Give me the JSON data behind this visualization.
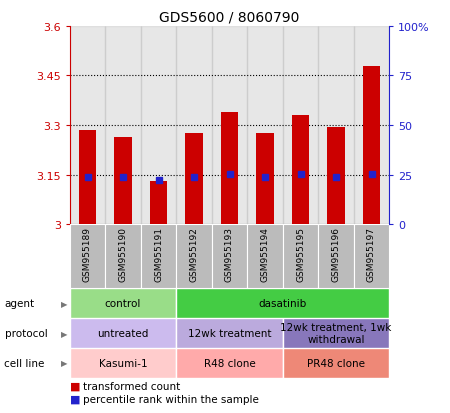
{
  "title": "GDS5600 / 8060790",
  "samples": [
    "GSM955189",
    "GSM955190",
    "GSM955191",
    "GSM955192",
    "GSM955193",
    "GSM955194",
    "GSM955195",
    "GSM955196",
    "GSM955197"
  ],
  "transformed_counts": [
    3.285,
    3.265,
    3.13,
    3.275,
    3.34,
    3.275,
    3.33,
    3.295,
    3.48
  ],
  "percentile_ranks_y": [
    3.142,
    3.142,
    3.133,
    3.142,
    3.152,
    3.142,
    3.152,
    3.142,
    3.152
  ],
  "ylim": [
    3.0,
    3.6
  ],
  "yticks": [
    3.0,
    3.15,
    3.3,
    3.45,
    3.6
  ],
  "ytick_labels": [
    "3",
    "3.15",
    "3.3",
    "3.45",
    "3.6"
  ],
  "right_ytick_labels": [
    "0",
    "25",
    "50",
    "75",
    "100%"
  ],
  "bar_color": "#cc0000",
  "percentile_color": "#2222cc",
  "left_axis_color": "#cc0000",
  "right_axis_color": "#2222cc",
  "sample_bg_color": "#bbbbbb",
  "agent_row": {
    "label": "agent",
    "groups": [
      {
        "text": "control",
        "start": 0,
        "end": 3,
        "color": "#99dd88"
      },
      {
        "text": "dasatinib",
        "start": 3,
        "end": 9,
        "color": "#44cc44"
      }
    ]
  },
  "protocol_row": {
    "label": "protocol",
    "groups": [
      {
        "text": "untreated",
        "start": 0,
        "end": 3,
        "color": "#ccbbee"
      },
      {
        "text": "12wk treatment",
        "start": 3,
        "end": 6,
        "color": "#bbaadd"
      },
      {
        "text": "12wk treatment, 1wk\nwithdrawal",
        "start": 6,
        "end": 9,
        "color": "#8877bb"
      }
    ]
  },
  "cellline_row": {
    "label": "cell line",
    "groups": [
      {
        "text": "Kasumi-1",
        "start": 0,
        "end": 3,
        "color": "#ffcccc"
      },
      {
        "text": "R48 clone",
        "start": 3,
        "end": 6,
        "color": "#ffaaaa"
      },
      {
        "text": "PR48 clone",
        "start": 6,
        "end": 9,
        "color": "#ee8877"
      }
    ]
  }
}
